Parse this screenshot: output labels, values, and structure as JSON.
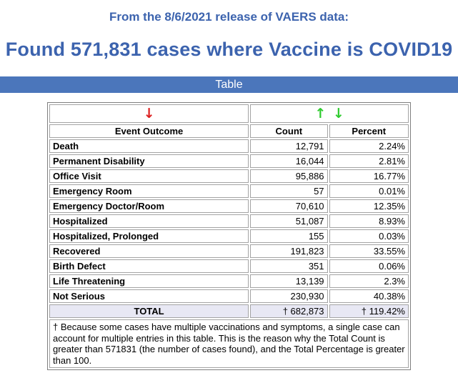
{
  "header": {
    "subtitle": "From the 8/6/2021 release of VAERS data:",
    "title": "Found 571,831 cases where Vaccine is COVID19",
    "section_label": "Table"
  },
  "icons": {
    "up_arrow": "↑",
    "down_arrow": "↓"
  },
  "colors": {
    "heading_text": "#3C63AE",
    "section_bar_bg": "#4B76BB",
    "red_arrow": "#DD2020",
    "green_arrow": "#2FCB2F",
    "total_row_bg": "#E8E8F4"
  },
  "table": {
    "columns": [
      "Event Outcome",
      "Count",
      "Percent"
    ],
    "rows": [
      {
        "outcome": "Death",
        "count": "12,791",
        "percent": "2.24%"
      },
      {
        "outcome": "Permanent Disability",
        "count": "16,044",
        "percent": "2.81%"
      },
      {
        "outcome": "Office Visit",
        "count": "95,886",
        "percent": "16.77%"
      },
      {
        "outcome": "Emergency Room",
        "count": "57",
        "percent": "0.01%"
      },
      {
        "outcome": "Emergency Doctor/Room",
        "count": "70,610",
        "percent": "12.35%"
      },
      {
        "outcome": "Hospitalized",
        "count": "51,087",
        "percent": "8.93%"
      },
      {
        "outcome": "Hospitalized, Prolonged",
        "count": "155",
        "percent": "0.03%"
      },
      {
        "outcome": "Recovered",
        "count": "191,823",
        "percent": "33.55%"
      },
      {
        "outcome": "Birth Defect",
        "count": "351",
        "percent": "0.06%"
      },
      {
        "outcome": "Life Threatening",
        "count": "13,139",
        "percent": "2.3%"
      },
      {
        "outcome": "Not Serious",
        "count": "230,930",
        "percent": "40.38%"
      }
    ],
    "total": {
      "label": "TOTAL",
      "count": "† 682,873",
      "percent": "† 119.42%"
    },
    "footnote": "† Because some cases have multiple vaccinations and symptoms, a single case can account for multiple entries in this table. This is the reason why the Total Count is greater than 571831 (the number of cases found), and the Total Percentage is greater than 100."
  }
}
